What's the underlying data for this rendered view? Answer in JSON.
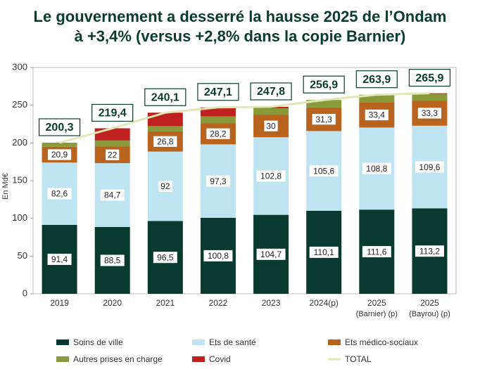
{
  "chart_data": {
    "type": "stacked-bar-line",
    "title": "Le gouvernement a desserré la hausse 2025 de l’Ondam à +3,4% (versus +2,8% dans la copie Barnier)",
    "y_label": "En Md€",
    "categories": [
      "2019",
      "2020",
      "2021",
      "2022",
      "2023",
      "2024(p)",
      "2025\n(Barnier) (p)",
      "2025\n(Bayrou) (p)"
    ],
    "ylim": [
      0,
      300
    ],
    "yticks": [
      0,
      50,
      100,
      150,
      200,
      250,
      300
    ],
    "series": [
      {
        "name": "Soins de ville",
        "color": "#083a2f",
        "values": [
          91.4,
          88.5,
          96.5,
          100.8,
          104.7,
          110.1,
          111.6,
          113.2
        ],
        "value_labels": [
          "91,4",
          "88,5",
          "96,5",
          "100,8",
          "104,7",
          "110,1",
          "111,6",
          "113,2"
        ]
      },
      {
        "name": "Ets de santé",
        "color": "#bfe4f1",
        "values": [
          82.6,
          84.7,
          92,
          97.3,
          102.8,
          105.6,
          108.8,
          109.6
        ],
        "value_labels": [
          "82,6",
          "84,7",
          "92",
          "97,3",
          "102,8",
          "105,6",
          "108,8",
          "109,6"
        ]
      },
      {
        "name": "Ets médico-sociaux",
        "color": "#b8641e",
        "values": [
          20.9,
          22,
          26.8,
          28.2,
          30,
          31.3,
          33.4,
          33.3
        ],
        "value_labels": [
          "20,9",
          "22",
          "26,8",
          "28,2",
          "30",
          "31,3",
          "33,4",
          "33,3"
        ]
      },
      {
        "name": "Autres prises en charge",
        "color": "#8a9a3a",
        "values": [
          5.4,
          8,
          7,
          9,
          8.5,
          9.9,
          10.1,
          8.8
        ]
      },
      {
        "name": "Covid",
        "color": "#c0201f",
        "values": [
          0,
          16.2,
          17.8,
          11.8,
          1.8,
          0,
          0,
          1
        ]
      }
    ],
    "total": {
      "name": "TOTAL",
      "color": "#e3e6b5",
      "values": [
        200.3,
        219.4,
        240.1,
        247.1,
        247.8,
        256.9,
        263.9,
        265.9
      ],
      "value_labels": [
        "200,3",
        "219,4",
        "240,1",
        "247,1",
        "247,8",
        "256,9",
        "263,9",
        "265,9"
      ]
    }
  }
}
